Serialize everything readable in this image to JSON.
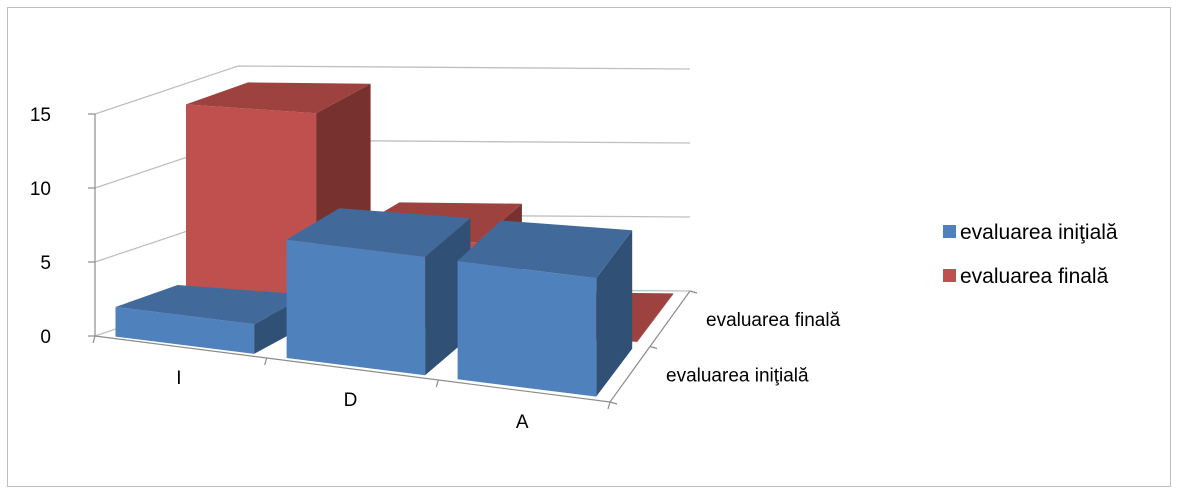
{
  "chart_data": {
    "type": "bar",
    "subtype": "3d-column",
    "categories": [
      "I",
      "D",
      "A"
    ],
    "series": [
      {
        "name": "evaluarea iniţială",
        "values": [
          2,
          8,
          8
        ],
        "color": "#4f81bd"
      },
      {
        "name": "evaluarea finală",
        "values": [
          14,
          6,
          0
        ],
        "color": "#c0504d"
      }
    ],
    "series_axis_labels": [
      "evaluarea iniţială",
      "evaluarea finală"
    ],
    "ylim": [
      0,
      15
    ],
    "yticks": [
      "0",
      "5",
      "10",
      "15"
    ],
    "grid": true,
    "legend_position": "right"
  }
}
